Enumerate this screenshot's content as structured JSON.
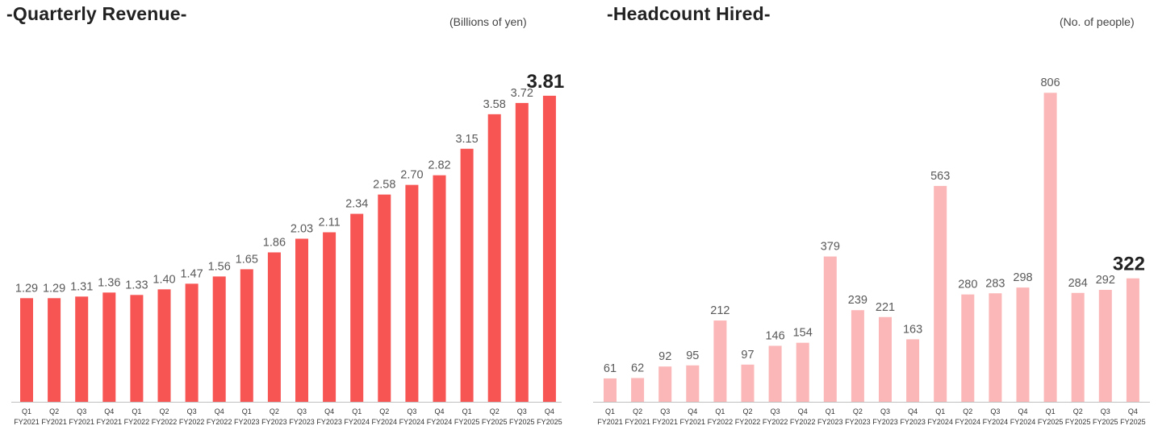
{
  "colors": {
    "revenue_bar": "#F75454",
    "headcount_bar": "#FBB7B7",
    "axis": "#BFBFBF"
  },
  "chart_data": [
    {
      "type": "bar",
      "title": "-Quarterly Revenue-",
      "unit": "(Billions of yen)",
      "categories": [
        [
          "Q1",
          "FY2021"
        ],
        [
          "Q2",
          "FY2021"
        ],
        [
          "Q3",
          "FY2021"
        ],
        [
          "Q4",
          "FY2021"
        ],
        [
          "Q1",
          "FY2022"
        ],
        [
          "Q2",
          "FY2022"
        ],
        [
          "Q3",
          "FY2022"
        ],
        [
          "Q4",
          "FY2022"
        ],
        [
          "Q1",
          "FY2023"
        ],
        [
          "Q2",
          "FY2023"
        ],
        [
          "Q3",
          "FY2023"
        ],
        [
          "Q4",
          "FY2023"
        ],
        [
          "Q1",
          "FY2024"
        ],
        [
          "Q2",
          "FY2024"
        ],
        [
          "Q3",
          "FY2024"
        ],
        [
          "Q4",
          "FY2024"
        ],
        [
          "Q1",
          "FY2025"
        ],
        [
          "Q2",
          "FY2025"
        ],
        [
          "Q3",
          "FY2025"
        ],
        [
          "Q4",
          "FY2025"
        ]
      ],
      "values": [
        1.29,
        1.29,
        1.31,
        1.36,
        1.33,
        1.4,
        1.47,
        1.56,
        1.65,
        1.86,
        2.03,
        2.11,
        2.34,
        2.58,
        2.7,
        2.82,
        3.15,
        3.58,
        3.72,
        3.81
      ],
      "value_labels": [
        "1.29",
        "1.29",
        "1.31",
        "1.36",
        "1.33",
        "1.40",
        "1.47",
        "1.56",
        "1.65",
        "1.86",
        "2.03",
        "2.11",
        "2.34",
        "2.58",
        "2.70",
        "2.82",
        "3.15",
        "3.58",
        "3.72",
        "3.81"
      ],
      "highlight_last": true,
      "ylim": [
        0,
        4.2
      ]
    },
    {
      "type": "bar",
      "title": "-Headcount Hired-",
      "unit": "(No. of people)",
      "categories": [
        [
          "Q1",
          "FY2021"
        ],
        [
          "Q2",
          "FY2021"
        ],
        [
          "Q3",
          "FY2021"
        ],
        [
          "Q4",
          "FY2021"
        ],
        [
          "Q1",
          "FY2022"
        ],
        [
          "Q2",
          "FY2022"
        ],
        [
          "Q3",
          "FY2022"
        ],
        [
          "Q4",
          "FY2022"
        ],
        [
          "Q1",
          "FY2023"
        ],
        [
          "Q2",
          "FY2023"
        ],
        [
          "Q3",
          "FY2023"
        ],
        [
          "Q4",
          "FY2023"
        ],
        [
          "Q1",
          "FY2024"
        ],
        [
          "Q2",
          "FY2024"
        ],
        [
          "Q3",
          "FY2024"
        ],
        [
          "Q4",
          "FY2024"
        ],
        [
          "Q1",
          "FY2025"
        ],
        [
          "Q2",
          "FY2025"
        ],
        [
          "Q3",
          "FY2025"
        ],
        [
          "Q4",
          "FY2025"
        ]
      ],
      "values": [
        61,
        62,
        92,
        95,
        212,
        97,
        146,
        154,
        379,
        239,
        221,
        163,
        563,
        280,
        283,
        298,
        806,
        284,
        292,
        322
      ],
      "value_labels": [
        "61",
        "62",
        "92",
        "95",
        "212",
        "97",
        "146",
        "154",
        "379",
        "239",
        "221",
        "163",
        "563",
        "280",
        "283",
        "298",
        "806",
        "284",
        "292",
        "322"
      ],
      "highlight_last": true,
      "ylim": [
        0,
        880
      ]
    }
  ]
}
